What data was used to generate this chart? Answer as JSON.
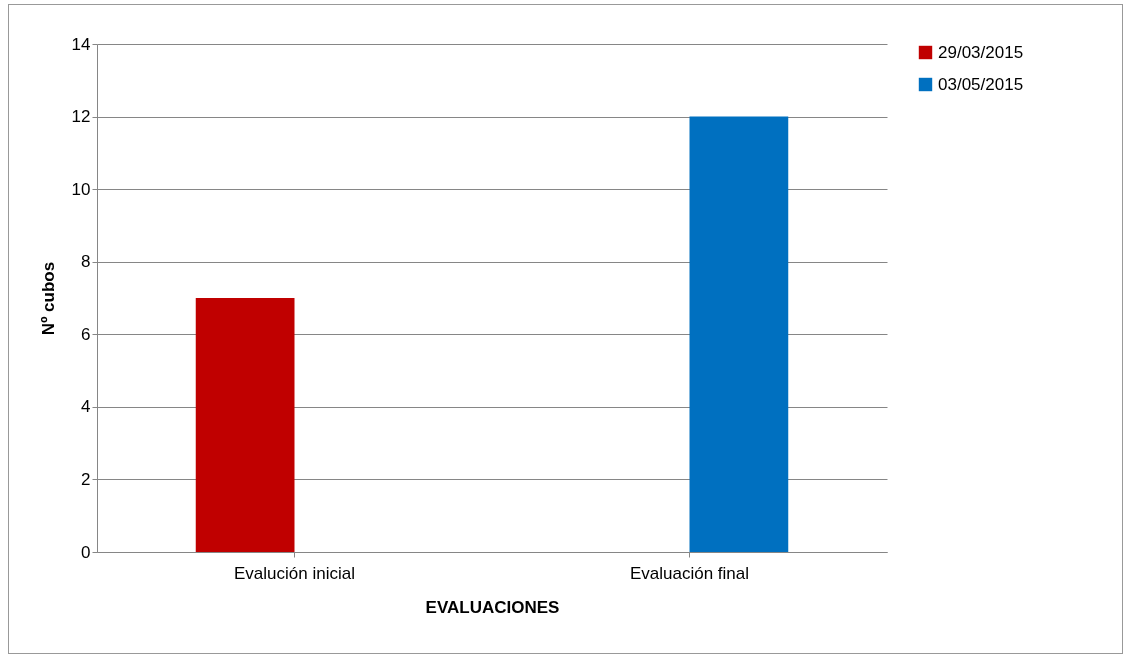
{
  "chart_data": {
    "type": "bar",
    "xlabel": "EVALUACIONES",
    "ylabel": "Nº cubos",
    "categories": [
      "Evalución inicial",
      "Evaluación final"
    ],
    "series": [
      {
        "name": "29/03/2015",
        "color": "#c00000",
        "values": [
          7,
          null
        ]
      },
      {
        "name": "03/05/2015",
        "color": "#0070c0",
        "values": [
          null,
          12
        ]
      }
    ],
    "ylim": [
      0,
      14
    ],
    "yticks": [
      0,
      2,
      4,
      6,
      8,
      10,
      12,
      14
    ],
    "grid": "y",
    "legend": "right"
  }
}
